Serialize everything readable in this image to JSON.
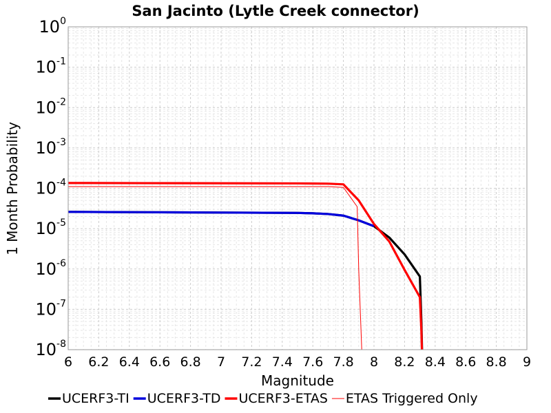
{
  "chart_data": {
    "type": "line",
    "title": "San Jacinto (Lytle Creek connector)",
    "xlabel": "Magnitude",
    "ylabel": "1 Month Probability",
    "xlim": [
      6,
      9
    ],
    "ylim": [
      1e-08,
      1
    ],
    "y_scale": "log",
    "grid": true,
    "legend_position": "bottom",
    "x_ticks": [
      "6",
      "6.2",
      "6.4",
      "6.6",
      "6.8",
      "7",
      "7.2",
      "7.4",
      "7.6",
      "7.8",
      "8",
      "8.2",
      "8.4",
      "8.6",
      "8.8",
      "9"
    ],
    "y_ticks": [
      {
        "base": "10",
        "exp": "0"
      },
      {
        "base": "10",
        "exp": "-1"
      },
      {
        "base": "10",
        "exp": "-2"
      },
      {
        "base": "10",
        "exp": "-3"
      },
      {
        "base": "10",
        "exp": "-4"
      },
      {
        "base": "10",
        "exp": "-5"
      },
      {
        "base": "10",
        "exp": "-6"
      },
      {
        "base": "10",
        "exp": "-7"
      },
      {
        "base": "10",
        "exp": "-8"
      }
    ],
    "series": [
      {
        "name": "UCERF3-TI",
        "color": "#000000",
        "x": [
          6.0,
          6.5,
          7.0,
          7.5,
          7.6,
          7.7,
          7.8,
          7.9,
          8.0,
          8.1,
          8.2,
          8.3,
          8.31,
          8.32
        ],
        "y": [
          2.6e-05,
          2.55e-05,
          2.5e-05,
          2.45e-05,
          2.4e-05,
          2.3e-05,
          2.1e-05,
          1.6e-05,
          1.15e-05,
          6e-06,
          2.3e-06,
          6.5e-07,
          5e-08,
          1e-09
        ]
      },
      {
        "name": "UCERF3-TD",
        "color": "#0000dd",
        "x": [
          6.0,
          6.5,
          7.0,
          7.5,
          7.6,
          7.7,
          7.8,
          7.9,
          8.0
        ],
        "y": [
          2.6e-05,
          2.55e-05,
          2.5e-05,
          2.45e-05,
          2.4e-05,
          2.3e-05,
          2.1e-05,
          1.6e-05,
          1.15e-05
        ]
      },
      {
        "name": "UCERF3-ETAS",
        "color": "#ff0000",
        "x": [
          6.0,
          6.5,
          7.0,
          7.5,
          7.6,
          7.7,
          7.8,
          7.9,
          8.0,
          8.1,
          8.2,
          8.3,
          8.31,
          8.32
        ],
        "y": [
          0.000135,
          0.000134,
          0.000133,
          0.000132,
          0.000131,
          0.00013,
          0.000125,
          5e-05,
          1.3e-05,
          4.8e-06,
          9.5e-07,
          2e-07,
          3e-08,
          1e-09
        ]
      },
      {
        "name": "ETAS Triggered Only",
        "color": "#ff0000",
        "thin": true,
        "x": [
          6.0,
          6.5,
          7.0,
          7.5,
          7.6,
          7.7,
          7.8,
          7.89,
          7.9,
          7.93
        ],
        "y": [
          0.00011,
          0.00011,
          0.00011,
          0.00011,
          0.00011,
          0.00011,
          0.000105,
          3.5e-05,
          1e-06,
          1e-09
        ]
      }
    ]
  }
}
